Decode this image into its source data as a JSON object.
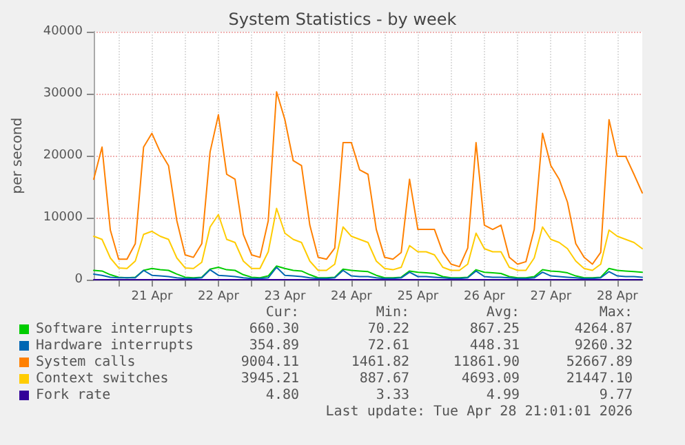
{
  "chart_data": {
    "type": "line",
    "title": "System Statistics - by week",
    "ylabel": "per second",
    "x": [
      "2026-04-20T15:00",
      "2026-04-20T18:00",
      "2026-04-20T21:00",
      "2026-04-21T00:00",
      "2026-04-21T03:00",
      "2026-04-21T06:00",
      "2026-04-21T09:00",
      "2026-04-21T12:00",
      "2026-04-21T15:00",
      "2026-04-21T18:00",
      "2026-04-21T21:00",
      "2026-04-22T00:00",
      "2026-04-22T03:00",
      "2026-04-22T06:00",
      "2026-04-22T09:00",
      "2026-04-22T12:00",
      "2026-04-22T15:00",
      "2026-04-22T18:00",
      "2026-04-22T21:00",
      "2026-04-23T00:00",
      "2026-04-23T03:00",
      "2026-04-23T06:00",
      "2026-04-23T09:00",
      "2026-04-23T12:00",
      "2026-04-23T15:00",
      "2026-04-23T18:00",
      "2026-04-23T21:00",
      "2026-04-24T00:00",
      "2026-04-24T03:00",
      "2026-04-24T06:00",
      "2026-04-24T09:00",
      "2026-04-24T12:00",
      "2026-04-24T15:00",
      "2026-04-24T18:00",
      "2026-04-24T21:00",
      "2026-04-25T00:00",
      "2026-04-25T03:00",
      "2026-04-25T06:00",
      "2026-04-25T09:00",
      "2026-04-25T12:00",
      "2026-04-25T15:00",
      "2026-04-25T18:00",
      "2026-04-25T21:00",
      "2026-04-26T00:00",
      "2026-04-26T03:00",
      "2026-04-26T06:00",
      "2026-04-26T09:00",
      "2026-04-26T12:00",
      "2026-04-26T15:00",
      "2026-04-26T18:00",
      "2026-04-26T21:00",
      "2026-04-27T00:00",
      "2026-04-27T03:00",
      "2026-04-27T06:00",
      "2026-04-27T09:00",
      "2026-04-27T12:00",
      "2026-04-27T15:00",
      "2026-04-27T18:00",
      "2026-04-27T21:00",
      "2026-04-28T00:00",
      "2026-04-28T03:00",
      "2026-04-28T06:00",
      "2026-04-28T09:00",
      "2026-04-28T12:00",
      "2026-04-28T15:00",
      "2026-04-28T18:00",
      "2026-04-28T21:00"
    ],
    "series": [
      {
        "name": "Software interrupts",
        "color": "#00cc00",
        "values": [
          1500,
          1400,
          800,
          400,
          300,
          400,
          1500,
          1800,
          1600,
          1500,
          900,
          400,
          300,
          400,
          1700,
          2000,
          1600,
          1500,
          800,
          400,
          300,
          600,
          2200,
          1800,
          1500,
          1400,
          800,
          300,
          300,
          400,
          1700,
          1500,
          1400,
          1300,
          700,
          300,
          300,
          400,
          1400,
          1200,
          1100,
          1000,
          500,
          300,
          300,
          400,
          1600,
          1200,
          1100,
          1000,
          500,
          300,
          300,
          500,
          1600,
          1400,
          1300,
          1100,
          600,
          300,
          300,
          400,
          1800,
          1500,
          1400,
          1300,
          1200
        ]
      },
      {
        "name": "Hardware interrupts",
        "color": "#0066b3",
        "values": [
          900,
          700,
          400,
          300,
          300,
          300,
          1500,
          700,
          600,
          500,
          300,
          200,
          200,
          300,
          1600,
          700,
          600,
          500,
          300,
          200,
          200,
          300,
          2000,
          700,
          600,
          500,
          300,
          200,
          200,
          300,
          1500,
          600,
          500,
          500,
          300,
          200,
          200,
          300,
          1200,
          500,
          500,
          400,
          300,
          200,
          200,
          300,
          1400,
          500,
          400,
          400,
          300,
          200,
          200,
          300,
          1200,
          600,
          500,
          400,
          300,
          200,
          200,
          300,
          1300,
          600,
          500,
          500,
          400
        ]
      },
      {
        "name": "System calls",
        "color": "#ff8000",
        "values": [
          16200,
          21400,
          8000,
          3300,
          3300,
          5800,
          21400,
          23600,
          20600,
          18400,
          9500,
          4000,
          3600,
          5800,
          20600,
          26600,
          17000,
          16200,
          7300,
          4000,
          3600,
          9500,
          30300,
          25800,
          19200,
          18400,
          8800,
          3600,
          3300,
          5100,
          22100,
          22100,
          17700,
          17000,
          8100,
          3600,
          3300,
          4400,
          16200,
          8100,
          8100,
          8100,
          4400,
          2500,
          2100,
          5100,
          22100,
          8800,
          8100,
          8800,
          3600,
          2500,
          2900,
          8100,
          23600,
          18400,
          16200,
          12500,
          5800,
          3600,
          2500,
          4400,
          25800,
          19900,
          19900,
          17000,
          14000
        ]
      },
      {
        "name": "Context switches",
        "color": "#ffcc00",
        "values": [
          7000,
          6500,
          3500,
          1900,
          1800,
          3000,
          7300,
          7800,
          7000,
          6500,
          3500,
          1900,
          1800,
          2800,
          8500,
          10500,
          6500,
          6000,
          3000,
          1800,
          1800,
          4500,
          11500,
          7500,
          6500,
          6000,
          3000,
          1500,
          1500,
          2500,
          8500,
          7000,
          6500,
          6000,
          3000,
          1800,
          1600,
          2000,
          5500,
          4500,
          4500,
          4000,
          2000,
          1500,
          1500,
          2500,
          7500,
          5000,
          4500,
          4500,
          2000,
          1500,
          1500,
          3500,
          8500,
          6500,
          6000,
          5000,
          3000,
          1800,
          1500,
          2500,
          8000,
          7000,
          6500,
          6000,
          5000
        ]
      },
      {
        "name": "Fork rate",
        "color": "#330099",
        "values": [
          5,
          5,
          5,
          5,
          5,
          5,
          5,
          5,
          5,
          5,
          5,
          5,
          5,
          5,
          5,
          5,
          5,
          5,
          5,
          5,
          5,
          5,
          5,
          5,
          5,
          5,
          5,
          5,
          5,
          5,
          5,
          5,
          5,
          5,
          5,
          5,
          5,
          5,
          5,
          5,
          5,
          5,
          5,
          5,
          5,
          5,
          5,
          5,
          5,
          5,
          5,
          5,
          5,
          5,
          5,
          5,
          5,
          5,
          5,
          5,
          5,
          5,
          5,
          5,
          5,
          5,
          5
        ]
      }
    ],
    "xlim": [
      "2026-04-20T15:00",
      "2026-04-28T21:00"
    ],
    "xticks": [
      {
        "value": "2026-04-21T00:00",
        "label": null
      },
      {
        "value": "2026-04-21T12:00",
        "label": "21 Apr"
      },
      {
        "value": "2026-04-22T00:00",
        "label": null
      },
      {
        "value": "2026-04-22T12:00",
        "label": "22 Apr"
      },
      {
        "value": "2026-04-23T00:00",
        "label": null
      },
      {
        "value": "2026-04-23T12:00",
        "label": "23 Apr"
      },
      {
        "value": "2026-04-24T00:00",
        "label": null
      },
      {
        "value": "2026-04-24T12:00",
        "label": "24 Apr"
      },
      {
        "value": "2026-04-25T00:00",
        "label": null
      },
      {
        "value": "2026-04-25T12:00",
        "label": "25 Apr"
      },
      {
        "value": "2026-04-26T00:00",
        "label": null
      },
      {
        "value": "2026-04-26T12:00",
        "label": "26 Apr"
      },
      {
        "value": "2026-04-27T00:00",
        "label": null
      },
      {
        "value": "2026-04-27T12:00",
        "label": "27 Apr"
      },
      {
        "value": "2026-04-28T00:00",
        "label": null
      },
      {
        "value": "2026-04-28T12:00",
        "label": "28 Apr"
      }
    ],
    "ylim": [
      0,
      40000
    ],
    "yticks": [
      0,
      10000,
      20000,
      30000,
      40000
    ],
    "grid": true,
    "legend": "bottom left",
    "marker": "none",
    "line_style": "solid",
    "annotations": [
      "Cur:",
      "Min:",
      "Avg:",
      "Max:",
      "660.30",
      "70.22",
      "867.25",
      "4264.87",
      "354.89",
      "72.61",
      "448.31",
      "9260.32",
      "9004.11",
      "1461.82",
      "11861.90",
      "52667.89",
      "3945.21",
      "887.67",
      "4693.09",
      "21447.10",
      "4.80",
      "3.33",
      "4.99",
      "9.77",
      "Last update: Tue Apr 28 21:01:01 2026"
    ]
  }
}
